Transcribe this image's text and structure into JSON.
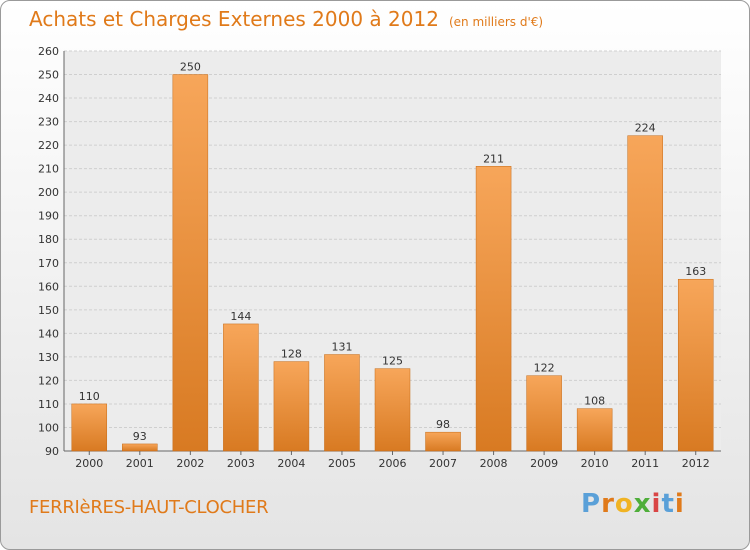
{
  "header": {
    "title": "Achats et Charges Externes 2000 à 2012",
    "subtitle": "(en milliers d'€)"
  },
  "footer": {
    "commune": "FERRIèRES-HAUT-CLOCHER",
    "logo": [
      "P",
      "r",
      "o",
      "x",
      "i",
      "t",
      "i"
    ]
  },
  "colors": {
    "title": "#e07a1a",
    "bar_light": "#f7a65a",
    "bar_dark": "#d87a22",
    "logo": [
      "#5aa0d8",
      "#e07a1a",
      "#f0b323",
      "#4fae3a",
      "#d94545",
      "#5aa0d8",
      "#e07a1a"
    ]
  },
  "chart_data": {
    "type": "bar",
    "title": "Achats et Charges Externes 2000 à 2012",
    "subtitle": "(en milliers d'€)",
    "categories": [
      "2000",
      "2001",
      "2002",
      "2003",
      "2004",
      "2005",
      "2006",
      "2007",
      "2008",
      "2009",
      "2010",
      "2011",
      "2012"
    ],
    "values": [
      110,
      93,
      250,
      144,
      128,
      131,
      125,
      98,
      211,
      122,
      108,
      224,
      163
    ],
    "ylim": [
      90,
      260
    ],
    "yticks": [
      90,
      100,
      110,
      120,
      130,
      140,
      150,
      160,
      170,
      180,
      190,
      200,
      210,
      220,
      230,
      240,
      250,
      260
    ],
    "grid": true,
    "xlabel": "",
    "ylabel": ""
  }
}
